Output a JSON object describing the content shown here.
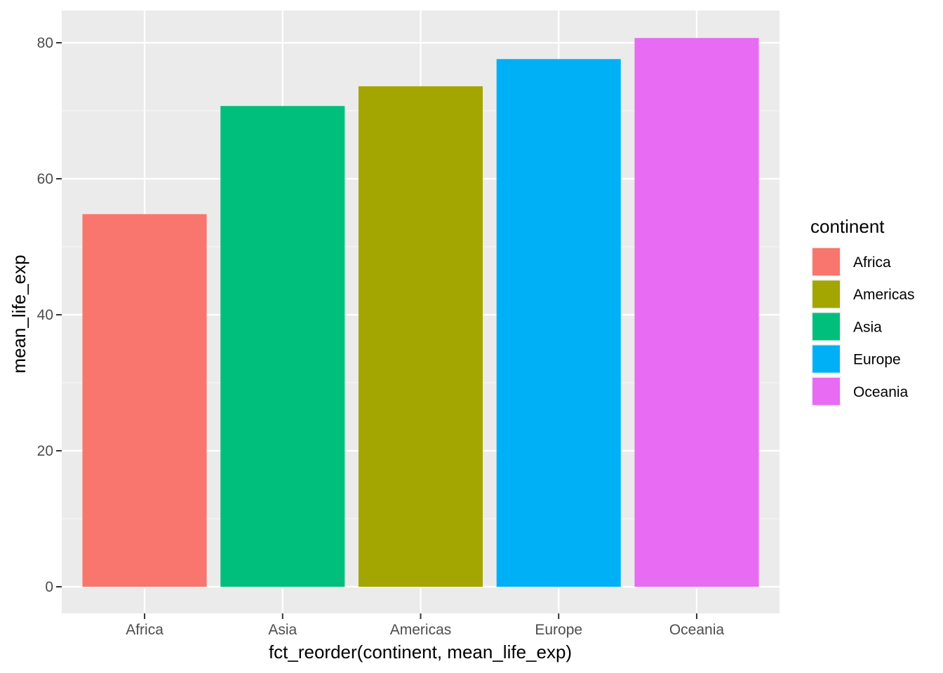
{
  "chart_data": {
    "type": "bar",
    "categories": [
      "Africa",
      "Asia",
      "Americas",
      "Europe",
      "Oceania"
    ],
    "values": [
      54.8,
      70.7,
      73.6,
      77.6,
      80.7
    ],
    "fill_by": [
      "Africa",
      "Asia",
      "Americas",
      "Europe",
      "Oceania"
    ],
    "xlabel": "fct_reorder(continent, mean_life_exp)",
    "ylabel": "mean_life_exp",
    "ylim": [
      0,
      80.7
    ],
    "yticks": [
      0,
      20,
      40,
      60,
      80
    ],
    "grid": true,
    "legend": {
      "title": "continent",
      "placement": "right",
      "entries": [
        {
          "label": "Africa",
          "color": "#F8766D"
        },
        {
          "label": "Americas",
          "color": "#A3A500"
        },
        {
          "label": "Asia",
          "color": "#00BF7D"
        },
        {
          "label": "Europe",
          "color": "#00B0F6"
        },
        {
          "label": "Oceania",
          "color": "#E76BF3"
        }
      ]
    },
    "colors": {
      "panel_background": "#EBEBEB",
      "grid_major": "#FFFFFF",
      "grid_minor": "#F5F5F5",
      "tick_color": "#333333"
    }
  }
}
